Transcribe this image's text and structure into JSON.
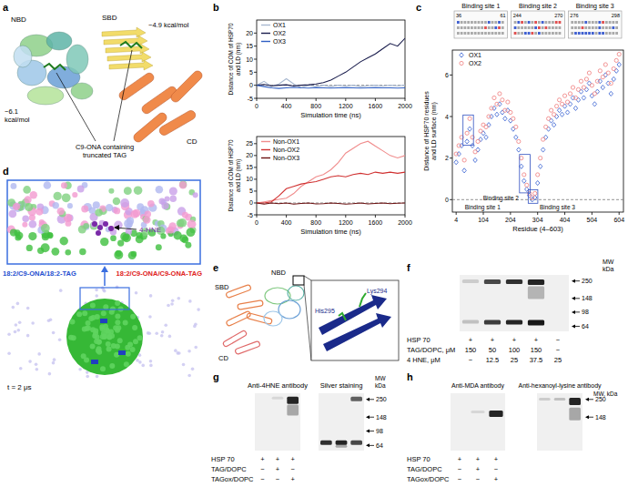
{
  "panel_letters": [
    "a",
    "b",
    "c",
    "d",
    "e",
    "f",
    "g",
    "h"
  ],
  "chart_data": [
    {
      "type": "line",
      "x": [
        0,
        100,
        200,
        300,
        400,
        500,
        600,
        700,
        800,
        900,
        1000,
        1100,
        1200,
        1300,
        1400,
        1500,
        1600,
        1700,
        1800,
        1900,
        2000
      ],
      "xlim": [
        0,
        2000
      ],
      "xticks": [
        0,
        400,
        800,
        1200,
        1600,
        2000
      ],
      "ylim": [
        -5,
        25
      ],
      "yticks": [
        -5,
        0,
        5,
        10,
        15,
        20
      ],
      "xlabel": "Simulation time (ns)",
      "ylabel": [
        "Distance of COM of HSP70",
        "and LD (nm)"
      ],
      "legend": "upper-left",
      "series": [
        {
          "name": "OX1",
          "color": "#a8b8d0",
          "values": [
            0,
            1.5,
            -0.5,
            0.5,
            2.5,
            0.5,
            -1,
            0,
            -0.5,
            0,
            -0.5,
            0,
            -0.3,
            0,
            -0.5,
            -0.2,
            0,
            -0.3,
            0,
            -0.2,
            0
          ]
        },
        {
          "name": "OX2",
          "color": "#1a1d4d",
          "values": [
            0,
            0.3,
            -0.2,
            0,
            0.2,
            -0.3,
            0,
            0.2,
            0.5,
            1,
            2,
            3.5,
            5,
            7,
            9,
            10.5,
            12,
            14,
            16,
            15,
            18
          ]
        },
        {
          "name": "OX3",
          "color": "#2f5fc4",
          "values": [
            0,
            -0.5,
            -1,
            -1.2,
            -1,
            -0.8,
            -1,
            -1.1,
            -0.9,
            -1,
            -1.1,
            -1,
            -0.9,
            -1,
            -1.1,
            -1,
            -0.9,
            -1,
            -1,
            -1.1,
            -1
          ]
        }
      ]
    },
    {
      "type": "line",
      "x": [
        0,
        100,
        200,
        300,
        400,
        500,
        600,
        700,
        800,
        900,
        1000,
        1100,
        1200,
        1300,
        1400,
        1500,
        1600,
        1700,
        1800,
        1900,
        2000
      ],
      "xlim": [
        0,
        2000
      ],
      "xticks": [
        0,
        400,
        800,
        1200,
        1600,
        2000
      ],
      "ylim": [
        -5,
        28
      ],
      "yticks": [
        -5,
        0,
        5,
        10,
        15,
        20,
        25
      ],
      "xlabel": "Simulation time (ns)",
      "ylabel": [
        "Distance of COM of HSP70",
        "and LD (nm)"
      ],
      "legend": "upper-left",
      "series": [
        {
          "name": "Non-OX1",
          "color": "#f08c8c",
          "values": [
            0,
            0.5,
            1,
            1.5,
            2,
            4,
            7,
            9,
            11,
            12,
            14,
            17,
            21,
            23,
            25,
            26,
            24,
            22,
            20,
            19,
            20
          ]
        },
        {
          "name": "Non-OX2",
          "color": "#d03030",
          "values": [
            0,
            0,
            0.5,
            3,
            6,
            7,
            8,
            8.5,
            9,
            10,
            11,
            11.5,
            11,
            12,
            12.5,
            12,
            13,
            12.5,
            13,
            12.5,
            13
          ]
        },
        {
          "name": "Non-OX3",
          "color": "#6b1010",
          "values": [
            0,
            -0.5,
            0,
            -0.3,
            0,
            -0.5,
            -0.2,
            0,
            -0.4,
            -0.3,
            0,
            -0.2,
            -0.5,
            -0.3,
            0,
            -0.4,
            -0.2,
            0,
            -0.3,
            -0.1,
            0
          ]
        }
      ]
    },
    {
      "type": "scatter",
      "x": [
        4,
        14,
        24,
        34,
        44,
        54,
        64,
        74,
        84,
        94,
        104,
        114,
        124,
        134,
        144,
        154,
        164,
        174,
        184,
        194,
        204,
        214,
        224,
        234,
        244,
        254,
        264,
        274,
        284,
        294,
        304,
        314,
        324,
        334,
        344,
        354,
        364,
        374,
        384,
        394,
        404,
        414,
        424,
        434,
        444,
        454,
        464,
        474,
        484,
        494,
        504,
        514,
        524,
        534,
        544,
        554,
        564,
        574,
        584,
        594,
        604
      ],
      "xlim": [
        -10,
        620
      ],
      "xticks": [
        4,
        104,
        204,
        304,
        404,
        504,
        604
      ],
      "ylim": [
        -0.6,
        7.2
      ],
      "yticks": [
        0,
        2,
        4,
        6
      ],
      "xlabel": "Residue (4–603)",
      "ylabel": [
        "Distance of HSP70 residues",
        "and LD surface (nm)"
      ],
      "legend": "upper-left",
      "headers": [
        {
          "title": "Binding site 1",
          "start": 36,
          "end": 61
        },
        {
          "title": "Binding site 2",
          "start": 244,
          "end": 270
        },
        {
          "title": "Binding site 3",
          "start": 276,
          "end": 298
        }
      ],
      "annotations": [
        {
          "text": "Binding site 1",
          "range": [
            36,
            61
          ]
        },
        {
          "text": "Binding site 2",
          "range": [
            244,
            270
          ]
        },
        {
          "text": "Binding site 3",
          "range": [
            276,
            298
          ]
        }
      ],
      "series": [
        {
          "name": "OX1",
          "color": "#4a6fd6",
          "marker": "diamond",
          "values": [
            1.8,
            2.2,
            2.6,
            1.4,
            2.8,
            3.4,
            2.6,
            1.9,
            2.4,
            2.9,
            3.2,
            3.0,
            3.6,
            4.0,
            4.4,
            4.1,
            4.6,
            4.2,
            3.9,
            4.3,
            3.8,
            3.4,
            3.0,
            2.4,
            1.6,
            0.9,
            0.5,
            0.2,
            0.0,
            0.1,
            0.8,
            1.6,
            2.4,
            3.0,
            3.4,
            3.8,
            3.6,
            4.0,
            4.3,
            4.1,
            4.5,
            4.2,
            4.6,
            4.9,
            4.4,
            4.8,
            5.2,
            4.9,
            5.3,
            5.6,
            5.0,
            4.6,
            5.2,
            5.7,
            5.4,
            6.0,
            5.6,
            5.1,
            5.8,
            6.2,
            6.5
          ]
        },
        {
          "name": "OX2",
          "color": "#f08a8a",
          "marker": "circle",
          "values": [
            2.2,
            2.6,
            3.0,
            1.9,
            3.2,
            3.9,
            3.0,
            2.3,
            2.8,
            3.3,
            3.6,
            3.5,
            4.0,
            4.4,
            4.9,
            4.6,
            5.1,
            4.8,
            4.3,
            4.7,
            4.2,
            3.9,
            3.5,
            2.8,
            2.0,
            1.2,
            0.7,
            0.3,
            0.1,
            0.3,
            1.2,
            2.0,
            2.9,
            3.5,
            3.9,
            4.3,
            4.1,
            4.5,
            4.8,
            4.6,
            5.0,
            4.7,
            5.1,
            5.4,
            4.9,
            5.3,
            5.7,
            5.4,
            5.8,
            6.1,
            5.5,
            5.1,
            5.7,
            6.2,
            5.9,
            6.5,
            6.1,
            5.6,
            6.3,
            6.7,
            7.0
          ]
        }
      ]
    }
  ],
  "panels": {
    "a": {
      "domains": [
        "NBD",
        "SBD",
        "CD"
      ],
      "energies": [
        [
          "−4.9 kcal/mol"
        ],
        [
          "−6.1",
          "kcal/mol"
        ]
      ],
      "ligand_label": [
        "C9-ONA containing",
        "truncated TAG"
      ]
    },
    "d": {
      "molecule": "4-HNE",
      "tags": [
        {
          "text": "18:2/C9-ONA/18:2-TAG",
          "color": "#1f4fd0"
        },
        {
          "text": "18:2/C9-ONA/C9-ONA-TAG",
          "color": "#e02020"
        }
      ],
      "time": "t = 2 μs"
    },
    "e": {
      "domains": [
        "SBD",
        "NBD",
        "CD"
      ],
      "residues": [
        "Lys294",
        "His295"
      ]
    },
    "f": {
      "mw_label": [
        "MW",
        "kDa"
      ],
      "markers": [
        250,
        148,
        98,
        64
      ],
      "rows": [
        {
          "label": "HSP 70",
          "cells": [
            "+",
            "+",
            "+",
            "+",
            "−"
          ]
        },
        {
          "label": "TAG/DOPC, μM",
          "cells": [
            "150",
            "50",
            "100",
            "150",
            "−"
          ]
        },
        {
          "label": "4 HNE, μM",
          "cells": [
            "−",
            "12.5",
            "25",
            "37.5",
            "25"
          ]
        }
      ]
    },
    "g": {
      "blots": [
        "Anti-4HNE antibody",
        "Silver staining"
      ],
      "mw_label": [
        "MW",
        "kDa"
      ],
      "markers": [
        250,
        148,
        98,
        64
      ],
      "rows": [
        {
          "label": "HSP 70",
          "cells": [
            "+",
            "+",
            "+"
          ]
        },
        {
          "label": "TAG/DOPC",
          "cells": [
            "−",
            "+",
            "−"
          ]
        },
        {
          "label": "TAGox/DOPC",
          "cells": [
            "−",
            "−",
            "+"
          ]
        }
      ]
    },
    "h": {
      "blots": [
        "Anti-MDA antibody",
        "Anti-hexanoyl-lysine antibody"
      ],
      "mw_label": [
        "MW, kDa"
      ],
      "markers": [
        250,
        148
      ],
      "rows": [
        {
          "label": "HSP 70",
          "cells": [
            "+",
            "+",
            "+"
          ]
        },
        {
          "label": "TAG/DOPC",
          "cells": [
            "−",
            "+",
            "−"
          ]
        },
        {
          "label": "TAGox/DOPC",
          "cells": [
            "−",
            "−",
            "+"
          ]
        }
      ]
    }
  }
}
